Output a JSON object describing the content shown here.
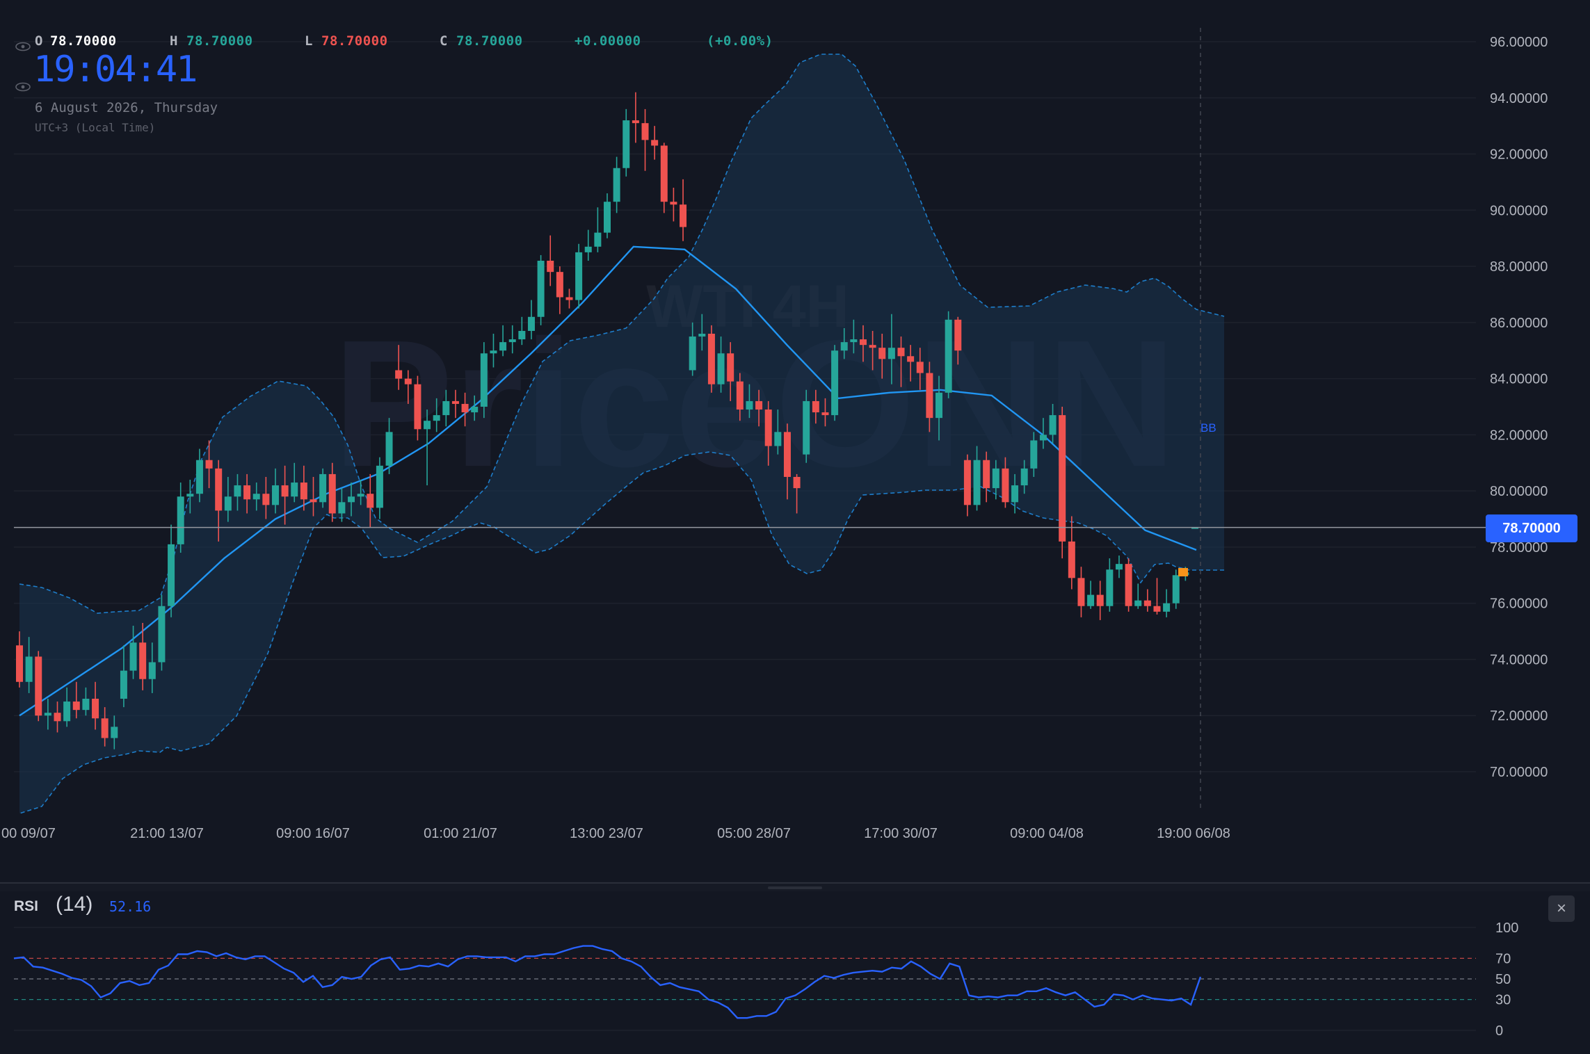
{
  "ohlc": {
    "o_label": "O",
    "o_value": "78.70000",
    "h_label": "H",
    "h_value": "78.70000",
    "l_label": "L",
    "l_value": "78.70000",
    "c_label": "C",
    "c_value": "78.70000",
    "change": "+0.00000",
    "change_pct": "(+0.00%)"
  },
  "clock": {
    "time": "19:04:41",
    "date": "6 August 2026, Thursday",
    "timezone": "UTC+3 (Local Time)"
  },
  "watermark": {
    "line1": "WTI 4H",
    "line2": "PriceONN"
  },
  "last_price": "78.70000",
  "bb_label": "BB",
  "rsi": {
    "title": "RSI",
    "length": "(14)",
    "value": "52.16",
    "close_glyph": "×"
  },
  "colors": {
    "background": "#131722",
    "up": "#26a69a",
    "down": "#ef5350",
    "accent": "#2962ff",
    "bb_basis": "#2196f3",
    "grid": "#1e222d",
    "text": "#b2b5be",
    "rsi_line": "#2962ff"
  },
  "icons": {
    "visibility": "eye-icon",
    "close": "close-icon"
  },
  "chart_data": [
    {
      "type": "candlestick",
      "title": "WTI 4H",
      "y_ticks": [
        "96.00000",
        "94.00000",
        "92.00000",
        "90.00000",
        "88.00000",
        "86.00000",
        "84.00000",
        "82.00000",
        "80.00000",
        "78.00000",
        "76.00000",
        "74.00000",
        "72.00000",
        "70.00000"
      ],
      "x_ticks": [
        "00 09/07",
        "21:00 13/07",
        "09:00 16/07",
        "01:00 21/07",
        "13:00 23/07",
        "05:00 28/07",
        "17:00 30/07",
        "09:00 04/08",
        "19:00 06/08"
      ],
      "ylim": [
        68.5,
        97
      ],
      "last_price": 78.7,
      "grid": true,
      "candles": [
        [
          74.5,
          73.2,
          75.0,
          73.0
        ],
        [
          73.2,
          74.1,
          74.8,
          72.8
        ],
        [
          74.1,
          72.0,
          74.3,
          71.8
        ],
        [
          72.0,
          72.1,
          72.6,
          71.5
        ],
        [
          72.1,
          71.8,
          72.5,
          71.4
        ],
        [
          71.8,
          72.5,
          73.0,
          71.6
        ],
        [
          72.5,
          72.2,
          73.2,
          71.9
        ],
        [
          72.2,
          72.6,
          73.0,
          72.0
        ],
        [
          72.6,
          71.9,
          73.2,
          71.5
        ],
        [
          71.9,
          71.2,
          72.3,
          70.9
        ],
        [
          71.2,
          71.6,
          72.0,
          70.8
        ],
        [
          72.6,
          73.6,
          74.5,
          72.3
        ],
        [
          73.6,
          74.6,
          75.2,
          73.3
        ],
        [
          74.6,
          73.3,
          75.3,
          72.9
        ],
        [
          73.3,
          73.9,
          74.6,
          72.8
        ],
        [
          73.9,
          75.9,
          76.3,
          73.6
        ],
        [
          75.9,
          78.1,
          78.8,
          75.5
        ],
        [
          78.1,
          79.8,
          80.3,
          77.8
        ],
        [
          79.8,
          79.9,
          80.4,
          79.2
        ],
        [
          79.9,
          81.1,
          81.5,
          79.6
        ],
        [
          81.1,
          80.8,
          81.8,
          80.1
        ],
        [
          80.8,
          79.3,
          81.1,
          78.2
        ],
        [
          79.3,
          79.8,
          80.5,
          78.9
        ],
        [
          79.8,
          80.2,
          80.6,
          79.3
        ],
        [
          80.2,
          79.7,
          80.6,
          79.2
        ],
        [
          79.7,
          79.9,
          80.3,
          79.3
        ],
        [
          79.9,
          79.5,
          80.5,
          79.0
        ],
        [
          79.5,
          80.2,
          80.8,
          79.2
        ],
        [
          80.2,
          79.8,
          80.9,
          78.8
        ],
        [
          79.8,
          80.3,
          81.0,
          79.6
        ],
        [
          80.3,
          79.7,
          80.9,
          79.3
        ],
        [
          79.7,
          79.6,
          80.5,
          79.1
        ],
        [
          79.6,
          80.6,
          80.8,
          79.4
        ],
        [
          80.6,
          79.2,
          81.0,
          78.9
        ],
        [
          79.2,
          79.6,
          80.1,
          78.9
        ],
        [
          79.6,
          79.8,
          80.3,
          79.1
        ],
        [
          79.8,
          79.9,
          80.4,
          79.5
        ],
        [
          79.9,
          79.4,
          80.6,
          78.7
        ],
        [
          79.4,
          80.9,
          81.2,
          79.0
        ],
        [
          80.9,
          82.1,
          82.6,
          80.6
        ],
        [
          84.3,
          84.0,
          85.2,
          83.6
        ],
        [
          84.0,
          83.8,
          84.3,
          83.1
        ],
        [
          83.8,
          82.2,
          84.1,
          81.8
        ],
        [
          82.2,
          82.5,
          82.9,
          80.2
        ],
        [
          82.5,
          82.7,
          83.3,
          82.1
        ],
        [
          82.7,
          83.2,
          83.6,
          82.3
        ],
        [
          83.2,
          83.1,
          83.6,
          82.6
        ],
        [
          83.1,
          82.8,
          83.5,
          82.3
        ],
        [
          82.8,
          83.0,
          83.4,
          82.5
        ],
        [
          83.0,
          84.9,
          85.3,
          82.6
        ],
        [
          84.9,
          85.0,
          85.6,
          84.4
        ],
        [
          85.0,
          85.3,
          85.9,
          84.8
        ],
        [
          85.3,
          85.4,
          85.9,
          84.9
        ],
        [
          85.4,
          85.7,
          86.2,
          85.2
        ],
        [
          85.7,
          86.2,
          86.8,
          85.4
        ],
        [
          86.2,
          88.2,
          88.4,
          85.9
        ],
        [
          88.2,
          87.8,
          89.1,
          87.3
        ],
        [
          87.8,
          86.9,
          88.0,
          86.3
        ],
        [
          86.9,
          86.8,
          87.2,
          86.5
        ],
        [
          86.8,
          88.5,
          88.8,
          86.5
        ],
        [
          88.5,
          88.7,
          89.3,
          88.2
        ],
        [
          88.7,
          89.2,
          90.1,
          88.5
        ],
        [
          89.2,
          90.3,
          90.6,
          89.0
        ],
        [
          90.3,
          91.5,
          91.9,
          89.9
        ],
        [
          91.5,
          93.2,
          93.6,
          91.2
        ],
        [
          93.2,
          93.1,
          94.2,
          92.4
        ],
        [
          93.1,
          92.5,
          93.6,
          91.4
        ],
        [
          92.5,
          92.3,
          93.0,
          91.8
        ],
        [
          92.3,
          90.3,
          92.4,
          89.9
        ],
        [
          90.3,
          90.2,
          90.8,
          89.6
        ],
        [
          90.2,
          89.4,
          91.1,
          88.9
        ],
        [
          84.3,
          85.5,
          86.0,
          84.1
        ],
        [
          85.5,
          85.6,
          86.3,
          85.0
        ],
        [
          85.6,
          83.8,
          85.9,
          83.5
        ],
        [
          83.8,
          84.9,
          85.5,
          83.5
        ],
        [
          84.9,
          83.9,
          85.3,
          83.2
        ],
        [
          83.9,
          82.9,
          84.2,
          82.5
        ],
        [
          82.9,
          83.2,
          83.8,
          82.6
        ],
        [
          83.2,
          82.9,
          83.6,
          82.3
        ],
        [
          82.9,
          81.6,
          83.2,
          80.9
        ],
        [
          81.6,
          82.1,
          82.9,
          81.3
        ],
        [
          82.1,
          80.5,
          82.4,
          79.7
        ],
        [
          80.5,
          80.1,
          80.6,
          79.2
        ],
        [
          81.3,
          83.2,
          83.6,
          81.0
        ],
        [
          83.2,
          82.8,
          83.6,
          82.4
        ],
        [
          82.8,
          82.7,
          83.3,
          82.3
        ],
        [
          82.7,
          85.0,
          85.2,
          82.5
        ],
        [
          85.0,
          85.3,
          85.8,
          84.7
        ],
        [
          85.3,
          85.4,
          86.1,
          84.9
        ],
        [
          85.4,
          85.2,
          85.9,
          84.6
        ],
        [
          85.2,
          85.1,
          85.7,
          84.3
        ],
        [
          85.1,
          84.7,
          85.6,
          84.0
        ],
        [
          84.7,
          85.1,
          86.3,
          83.8
        ],
        [
          85.1,
          84.8,
          85.5,
          83.7
        ],
        [
          84.8,
          84.6,
          85.2,
          83.9
        ],
        [
          84.6,
          84.2,
          85.1,
          83.6
        ],
        [
          84.2,
          82.6,
          84.6,
          82.1
        ],
        [
          82.6,
          83.5,
          84.1,
          81.8
        ],
        [
          83.5,
          86.1,
          86.4,
          83.3
        ],
        [
          86.1,
          85.0,
          86.2,
          84.5
        ],
        [
          81.1,
          79.5,
          81.3,
          79.1
        ],
        [
          79.5,
          81.1,
          81.6,
          79.3
        ],
        [
          81.1,
          80.1,
          81.4,
          79.6
        ],
        [
          80.1,
          80.8,
          81.1,
          79.7
        ],
        [
          80.8,
          79.6,
          81.2,
          79.4
        ],
        [
          79.6,
          80.2,
          80.6,
          79.2
        ],
        [
          80.2,
          80.8,
          81.1,
          79.9
        ],
        [
          80.8,
          81.8,
          82.1,
          80.5
        ],
        [
          81.8,
          82.0,
          82.6,
          81.5
        ],
        [
          82.0,
          82.7,
          83.1,
          81.7
        ],
        [
          82.7,
          78.2,
          83.0,
          77.6
        ],
        [
          78.2,
          76.9,
          79.1,
          76.5
        ],
        [
          76.9,
          75.9,
          77.3,
          75.5
        ],
        [
          75.9,
          76.3,
          76.8,
          75.8
        ],
        [
          76.3,
          75.9,
          76.8,
          75.4
        ],
        [
          75.9,
          77.2,
          77.6,
          75.7
        ],
        [
          77.2,
          77.4,
          77.7,
          76.9
        ],
        [
          77.4,
          75.9,
          77.6,
          75.7
        ],
        [
          75.9,
          76.1,
          76.7,
          75.8
        ],
        [
          76.1,
          75.9,
          76.5,
          75.7
        ],
        [
          75.9,
          75.7,
          76.9,
          75.6
        ],
        [
          75.7,
          76.0,
          76.5,
          75.5
        ],
        [
          76.0,
          77.0,
          77.2,
          75.8
        ],
        [
          77.0,
          77.1,
          77.3,
          76.8
        ],
        [
          78.7,
          78.7,
          78.7,
          78.7
        ]
      ],
      "bb_basis_approx": [
        72.0,
        73.2,
        74.4,
        75.9,
        77.6,
        79.0,
        79.9,
        80.6,
        81.7,
        83.2,
        84.9,
        86.7,
        88.7,
        88.6,
        87.2,
        85.2,
        83.3,
        83.5,
        83.6,
        83.4,
        82.0,
        80.3,
        78.6,
        77.9
      ]
    },
    {
      "type": "line",
      "title": "RSI",
      "y_ticks": [
        "100",
        "70",
        "50",
        "30",
        "0"
      ],
      "ylim": [
        0,
        100
      ],
      "levels": [
        70,
        50,
        30
      ],
      "values": [
        70,
        71,
        62,
        61,
        58,
        55,
        51,
        49,
        43,
        32,
        36,
        46,
        48,
        44,
        46,
        59,
        63,
        74,
        74,
        77,
        76,
        72,
        75,
        71,
        69,
        72,
        72,
        66,
        60,
        56,
        47,
        53,
        42,
        44,
        52,
        50,
        52,
        63,
        69,
        71,
        59,
        60,
        63,
        62,
        65,
        62,
        69,
        72,
        72,
        71,
        71,
        71,
        67,
        72,
        72,
        74,
        74,
        77,
        80,
        82,
        82,
        79,
        77,
        70,
        67,
        62,
        52,
        44,
        46,
        42,
        40,
        38,
        30,
        27,
        22,
        12,
        12,
        14,
        14,
        18,
        31,
        34,
        40,
        47,
        53,
        51,
        54,
        56,
        57,
        58,
        57,
        61,
        60,
        67,
        62,
        55,
        50,
        65,
        62,
        34,
        32,
        33,
        32,
        34,
        34,
        38,
        38,
        41,
        37,
        34,
        37,
        30,
        23,
        25,
        35,
        34,
        30,
        34,
        31,
        30,
        29,
        31,
        25,
        52
      ]
    }
  ]
}
